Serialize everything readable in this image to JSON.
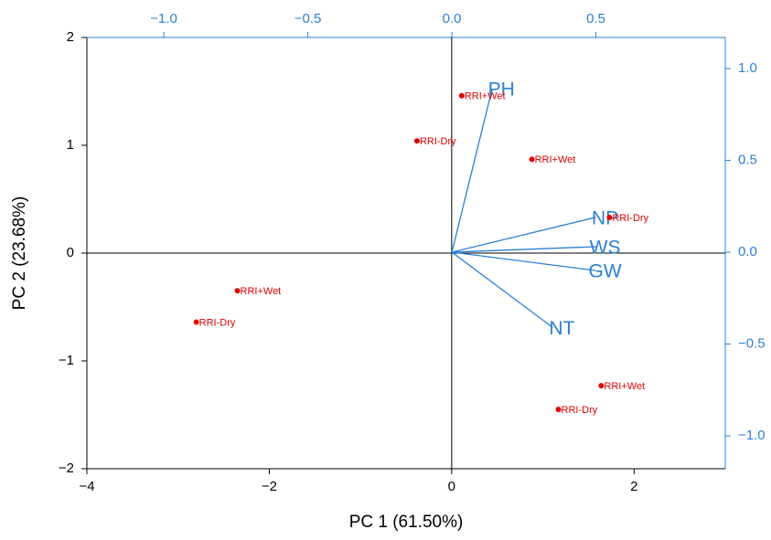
{
  "chart_data": {
    "type": "biplot",
    "x_label": "PC 1 (61.50%)",
    "y_label": "PC 2 (23.68%)",
    "xlim": [
      -4,
      3
    ],
    "xticks": [
      {
        "value": -4,
        "label": "−4"
      },
      {
        "value": -2,
        "label": "−2"
      },
      0,
      2
    ],
    "ylim": [
      -2,
      2
    ],
    "yticks": [
      {
        "value": -2,
        "label": "−2"
      },
      {
        "value": -1,
        "label": "−1"
      },
      0,
      1,
      2
    ],
    "x2lim": [
      -1.267,
      0.949
    ],
    "x2ticks": [
      {
        "value": -1,
        "label": "−1.0"
      },
      {
        "value": -0.5,
        "label": "−0.5"
      },
      {
        "value": 0,
        "label": "0.0"
      },
      0.5
    ],
    "y2lim": [
      -1.179,
      1.169
    ],
    "y2ticks": [
      {
        "value": -1,
        "label": "−1.0"
      },
      {
        "value": -0.5,
        "label": "−0.5"
      },
      {
        "value": 0,
        "label": "0.0"
      },
      0.5,
      {
        "value": 1,
        "label": "1.0"
      }
    ],
    "scores": {
      "name": "scores",
      "color": "#e00000",
      "labels": [
        "RRI+Wet",
        "RRI-Dry",
        "RRI+Wet",
        "RRI-Dry",
        "RRI+Wet",
        "RRI-Dry",
        "RRI+Wet",
        "RRI-Dry"
      ],
      "x": [
        0.11,
        -0.38,
        0.88,
        1.73,
        -2.35,
        -2.8,
        1.64,
        1.17
      ],
      "y": [
        1.46,
        1.04,
        0.87,
        0.33,
        -0.35,
        -0.64,
        -1.23,
        -1.45
      ]
    },
    "loadings": {
      "name": "loadings",
      "color": "#2a7fd4",
      "labels": [
        "PH",
        "NP",
        "WS",
        "GW",
        "NT"
      ],
      "x": [
        0.14,
        0.5,
        0.5,
        0.5,
        0.35
      ],
      "y": [
        0.89,
        0.19,
        0.03,
        -0.1,
        -0.41
      ]
    }
  }
}
